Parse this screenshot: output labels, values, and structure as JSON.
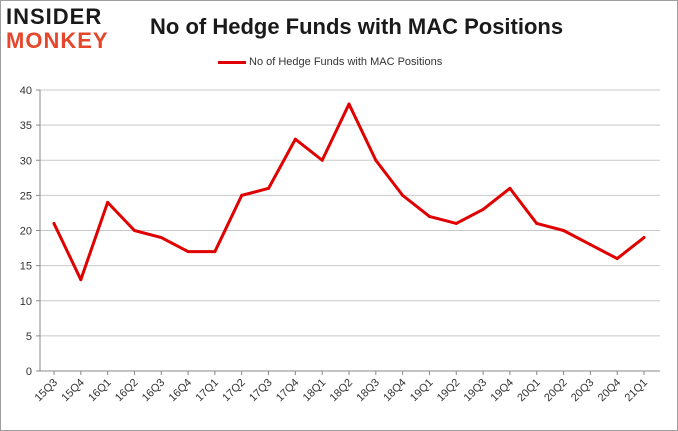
{
  "header": {
    "logo_line1": "INSIDER",
    "logo_line2": "MONKEY",
    "title": "No of Hedge Funds with MAC Positions"
  },
  "legend": {
    "label": "No of Hedge Funds with MAC Positions"
  },
  "colors": {
    "series": "#e00000",
    "grid": "#c8c8c8",
    "logo_accent": "#e6462c"
  },
  "chart_data": {
    "type": "line",
    "title": "No of Hedge Funds with MAC Positions",
    "xlabel": "",
    "ylabel": "",
    "ylim": [
      0,
      40
    ],
    "yticks": [
      0,
      5,
      10,
      15,
      20,
      25,
      30,
      35,
      40
    ],
    "grid": true,
    "legend_position": "top-center",
    "categories": [
      "15Q3",
      "15Q4",
      "16Q1",
      "16Q2",
      "16Q3",
      "16Q4",
      "17Q1",
      "17Q2",
      "17Q3",
      "17Q4",
      "18Q1",
      "18Q2",
      "18Q3",
      "18Q4",
      "19Q1",
      "19Q2",
      "19Q3",
      "19Q4",
      "20Q1",
      "20Q2",
      "20Q3",
      "20Q4",
      "21Q1"
    ],
    "series": [
      {
        "name": "No of Hedge Funds with MAC Positions",
        "values": [
          21,
          13,
          24,
          20,
          19,
          17,
          17,
          25,
          26,
          33,
          30,
          38,
          30,
          25,
          22,
          21,
          23,
          26,
          21,
          20,
          18,
          16,
          19
        ]
      }
    ]
  }
}
